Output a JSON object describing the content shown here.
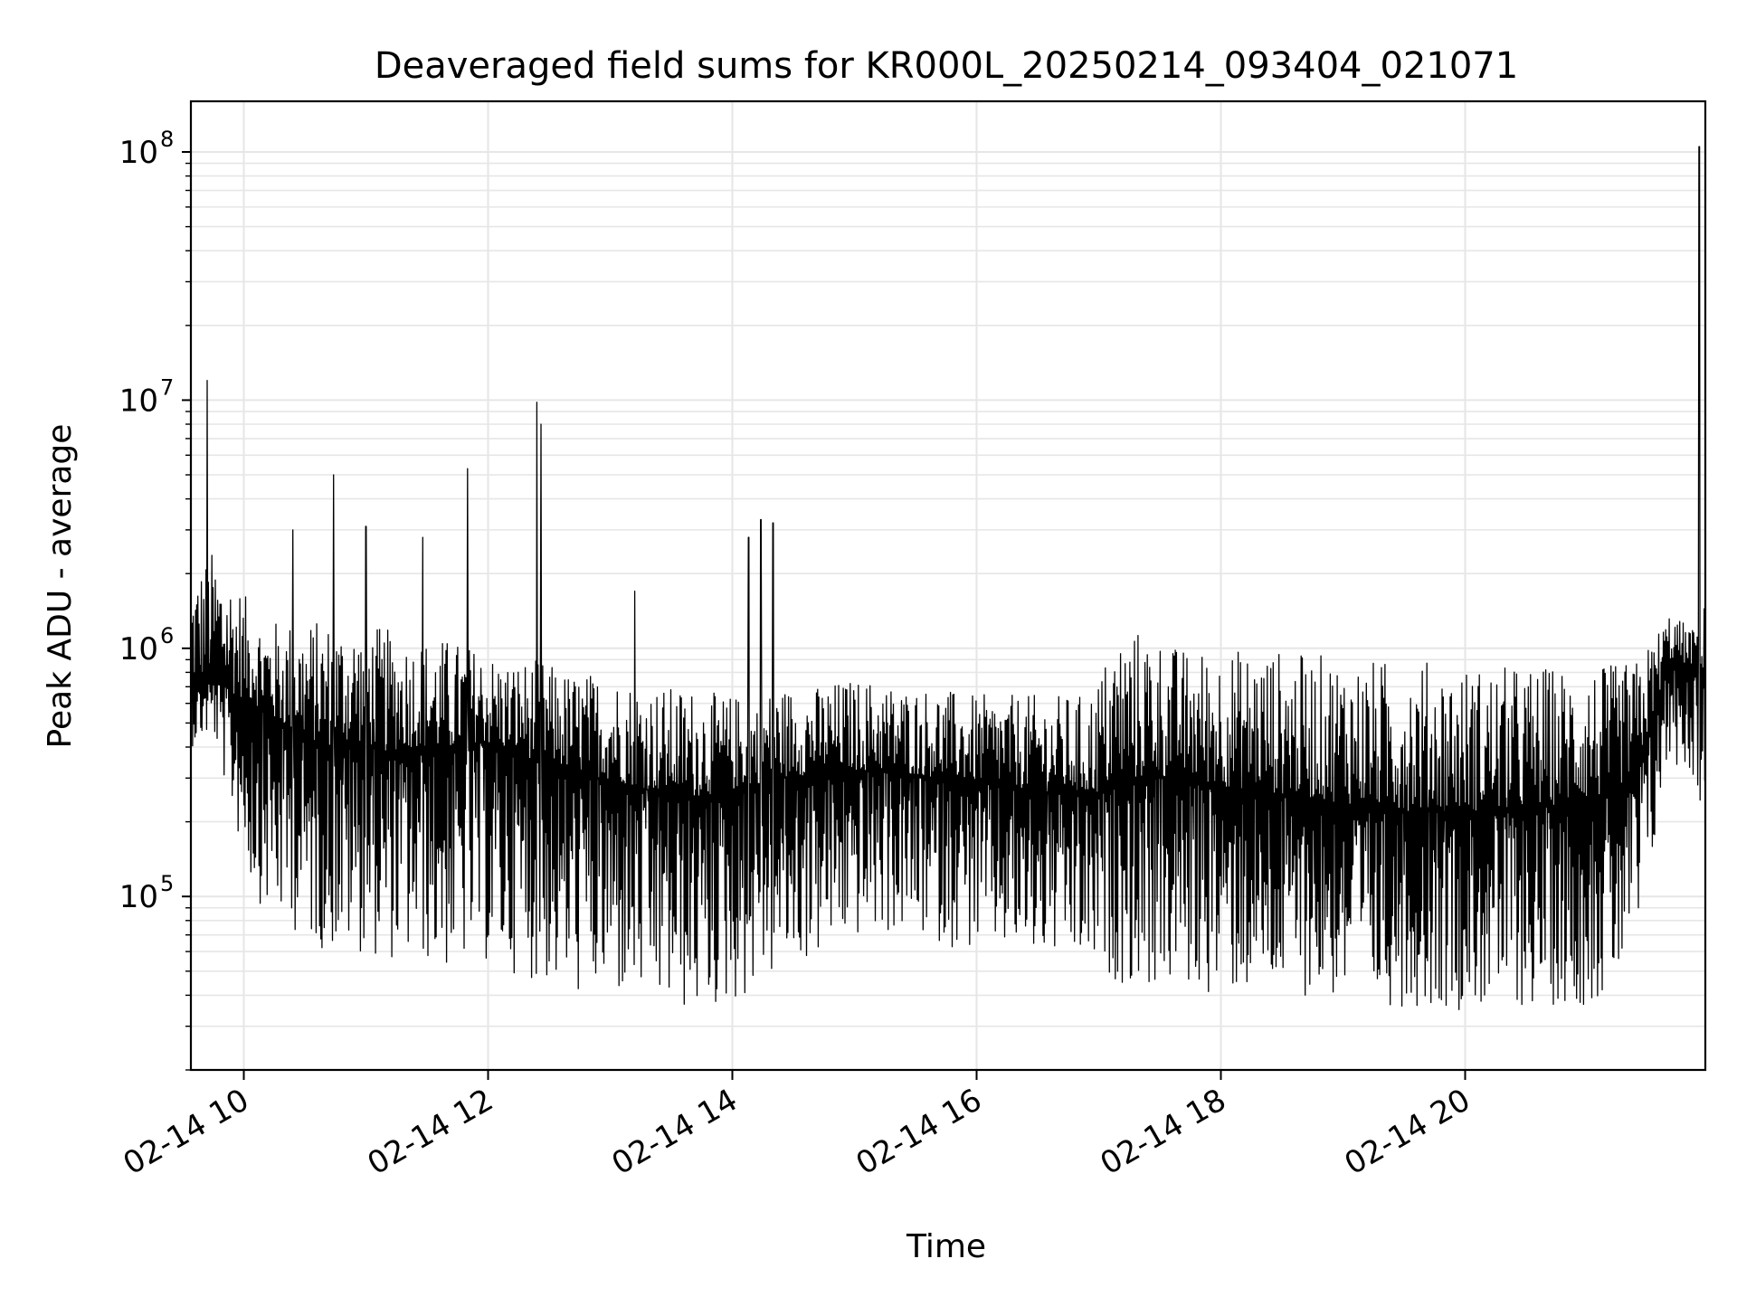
{
  "chart_data": {
    "type": "line",
    "title": "Deaveraged field sums for KR000L_20250214_093404_021071",
    "xlabel": "Time",
    "ylabel": "Peak ADU - average",
    "x_axis_type": "datetime",
    "xlim": [
      "02-14 09:34",
      "02-14 21:58"
    ],
    "xticks": [
      "02-14 10",
      "02-14 12",
      "02-14 14",
      "02-14 16",
      "02-14 18",
      "02-14 20"
    ],
    "y_scale": "log",
    "ylim": [
      20000,
      160000000
    ],
    "yticks": [
      {
        "value": 100000,
        "base": "10",
        "exp": "5"
      },
      {
        "value": 1000000,
        "base": "10",
        "exp": "6"
      },
      {
        "value": 10000000,
        "base": "10",
        "exp": "7"
      },
      {
        "value": 100000000,
        "base": "10",
        "exp": "8"
      }
    ],
    "grid": true,
    "line_color": "#000000",
    "grid_color": "#e6e6e6",
    "series": [
      {
        "x": [
          "02-14 09:34",
          "02-14 09:45",
          "02-14 09:55",
          "02-14 10:05",
          "02-14 10:15",
          "02-14 10:25",
          "02-14 10:40",
          "02-14 10:55",
          "02-14 11:10",
          "02-14 11:25",
          "02-14 11:40",
          "02-14 11:55",
          "02-14 12:10",
          "02-14 12:25",
          "02-14 12:40",
          "02-14 12:55",
          "02-14 13:10",
          "02-14 13:25",
          "02-14 13:40",
          "02-14 13:55",
          "02-14 14:10",
          "02-14 14:25",
          "02-14 14:40",
          "02-14 14:55",
          "02-14 15:10",
          "02-14 15:25",
          "02-14 15:40",
          "02-14 15:55",
          "02-14 16:10",
          "02-14 16:25",
          "02-14 16:40",
          "02-14 16:55",
          "02-14 17:10",
          "02-14 17:25",
          "02-14 17:40",
          "02-14 17:55",
          "02-14 18:10",
          "02-14 18:25",
          "02-14 18:40",
          "02-14 18:55",
          "02-14 19:10",
          "02-14 19:25",
          "02-14 19:40",
          "02-14 19:55",
          "02-14 20:10",
          "02-14 20:25",
          "02-14 20:40",
          "02-14 20:55",
          "02-14 21:10",
          "02-14 21:25",
          "02-14 21:40",
          "02-14 21:52",
          "02-14 21:58"
        ],
        "y": [
          700000,
          800000,
          650000,
          600000,
          500000,
          450000,
          400000,
          420000,
          380000,
          400000,
          370000,
          420000,
          380000,
          350000,
          320000,
          300000,
          280000,
          260000,
          250000,
          260000,
          280000,
          300000,
          310000,
          320000,
          320000,
          310000,
          300000,
          290000,
          280000,
          270000,
          260000,
          250000,
          280000,
          300000,
          300000,
          280000,
          270000,
          260000,
          250000,
          240000,
          230000,
          220000,
          220000,
          220000,
          220000,
          220000,
          230000,
          240000,
          250000,
          330000,
          900000,
          850000,
          800000
        ],
        "y_low": [
          400000,
          450000,
          200000,
          100000,
          80000,
          70000,
          60000,
          60000,
          55000,
          55000,
          50000,
          55000,
          50000,
          45000,
          40000,
          38000,
          38000,
          35000,
          33000,
          35000,
          40000,
          50000,
          55000,
          65000,
          70000,
          70000,
          65000,
          60000,
          60000,
          55000,
          55000,
          50000,
          45000,
          42000,
          42000,
          40000,
          40000,
          40000,
          40000,
          38000,
          36000,
          36000,
          36000,
          35000,
          35000,
          35000,
          36000,
          36000,
          38000,
          60000,
          350000,
          300000,
          170000
        ],
        "y_high": [
          2000000,
          2500000,
          2000000,
          1400000,
          1300000,
          1300000,
          1300000,
          1300000,
          1200000,
          1100000,
          1100000,
          1000000,
          900000,
          900000,
          800000,
          800000,
          750000,
          700000,
          700000,
          650000,
          650000,
          700000,
          700000,
          750000,
          750000,
          700000,
          700000,
          650000,
          650000,
          650000,
          650000,
          650000,
          1200000,
          1200000,
          1000000,
          1000000,
          1000000,
          1000000,
          950000,
          950000,
          900000,
          900000,
          900000,
          850000,
          850000,
          850000,
          850000,
          850000,
          850000,
          900000,
          1400000,
          1200000,
          2200000
        ],
        "spikes": [
          {
            "x": "02-14 09:42",
            "y": 12000000
          },
          {
            "x": "02-14 10:24",
            "y": 3000000
          },
          {
            "x": "02-14 10:44",
            "y": 5000000
          },
          {
            "x": "02-14 11:00",
            "y": 3100000
          },
          {
            "x": "02-14 11:28",
            "y": 2800000
          },
          {
            "x": "02-14 11:50",
            "y": 5300000
          },
          {
            "x": "02-14 12:24",
            "y": 9800000
          },
          {
            "x": "02-14 12:26",
            "y": 8000000
          },
          {
            "x": "02-14 13:12",
            "y": 1700000
          },
          {
            "x": "02-14 14:08",
            "y": 2800000
          },
          {
            "x": "02-14 14:14",
            "y": 3300000
          },
          {
            "x": "02-14 14:20",
            "y": 3200000
          },
          {
            "x": "02-14 21:55",
            "y": 105000000
          }
        ]
      }
    ]
  }
}
